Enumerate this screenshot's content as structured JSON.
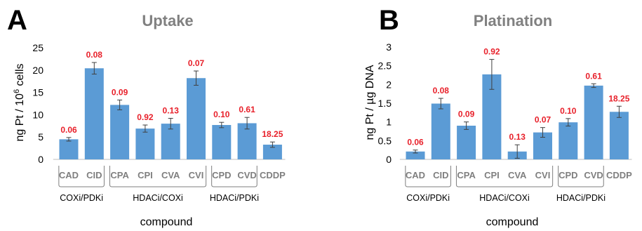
{
  "chart_data": [
    {
      "type": "bar",
      "panel": "A",
      "title": "Uptake",
      "ylabel_main": "ng Pt / 10",
      "ylabel_sup": "6",
      "ylabel_tail": " cells",
      "xlabel": "compound",
      "ylim": [
        0,
        25
      ],
      "yticks": [
        "0",
        "5",
        "10",
        "15",
        "20",
        "25"
      ],
      "categories": [
        "CAD",
        "CID",
        "CPA",
        "CPI",
        "CVA",
        "CVI",
        "CPD",
        "CVD",
        "CDDP"
      ],
      "values": [
        4.5,
        20.4,
        12.2,
        6.9,
        8.0,
        18.2,
        7.7,
        8.1,
        3.3
      ],
      "errors": [
        0.4,
        1.3,
        1.1,
        0.8,
        1.2,
        1.6,
        0.6,
        1.3,
        0.6
      ],
      "labels": [
        "0.06",
        "0.08",
        "0.09",
        "0.92",
        "0.13",
        "0.07",
        "0.10",
        "0.61",
        "18.25"
      ],
      "groups": [
        {
          "name": "COXi/PDKi",
          "members": [
            "CAD",
            "CID"
          ]
        },
        {
          "name": "HDACi/COXi",
          "members": [
            "CPA",
            "CPI",
            "CVA",
            "CVI"
          ]
        },
        {
          "name": "HDACi/PDKi",
          "members": [
            "CPD",
            "CVD"
          ]
        }
      ],
      "bar_color": "#5b9bd5",
      "label_color": "#e8202a"
    },
    {
      "type": "bar",
      "panel": "B",
      "title": "Platination",
      "ylabel_main": "ng Pt / µg DNA",
      "ylabel_sup": "",
      "ylabel_tail": "",
      "xlabel": "compound",
      "ylim": [
        0,
        3
      ],
      "yticks": [
        "0",
        "0.5",
        "1",
        "1.5",
        "2",
        "2.5",
        "3"
      ],
      "categories": [
        "CAD",
        "CID",
        "CPA",
        "CPI",
        "CVA",
        "CVI",
        "CPD",
        "CVD",
        "CDDP"
      ],
      "values": [
        0.21,
        1.49,
        0.9,
        2.27,
        0.21,
        0.72,
        0.99,
        1.97,
        1.27
      ],
      "errors": [
        0.04,
        0.14,
        0.1,
        0.4,
        0.18,
        0.13,
        0.1,
        0.05,
        0.15
      ],
      "labels": [
        "0.06",
        "0.08",
        "0.09",
        "0.92",
        "0.13",
        "0.07",
        "0.10",
        "0.61",
        "18.25"
      ],
      "groups": [
        {
          "name": "COXi/PDKi",
          "members": [
            "CAD",
            "CID"
          ]
        },
        {
          "name": "HDACi/COXi",
          "members": [
            "CPA",
            "CPI",
            "CVA",
            "CVI"
          ]
        },
        {
          "name": "HDACi/PDKi",
          "members": [
            "CPD",
            "CVD"
          ]
        }
      ],
      "bar_color": "#5b9bd5",
      "label_color": "#e8202a"
    }
  ]
}
